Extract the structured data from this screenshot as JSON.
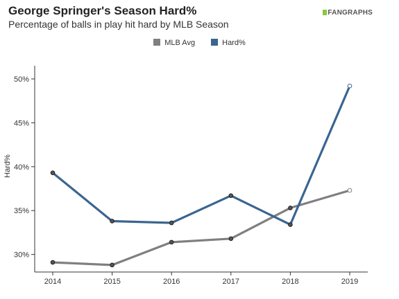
{
  "header": {
    "title": "George Springer's Season Hard%",
    "subtitle": "Percentage of balls in play hit hard by MLB Season",
    "logo_text": "FANGRAPHS"
  },
  "chart_data": {
    "type": "line",
    "title": "George Springer's Season Hard%",
    "subtitle": "Percentage of balls in play hit hard by MLB Season",
    "xlabel": "",
    "ylabel": "Hard%",
    "x": [
      2014,
      2015,
      2016,
      2017,
      2018,
      2019
    ],
    "xticks": [
      "2014",
      "2015",
      "2016",
      "2017",
      "2018",
      "2019"
    ],
    "yticks": [
      "30%",
      "35%",
      "40%",
      "45%",
      "50%"
    ],
    "ytick_values": [
      30,
      35,
      40,
      45,
      50
    ],
    "ylim": [
      28,
      51.5
    ],
    "legend": "top-center",
    "grid": false,
    "series": [
      {
        "name": "MLB Avg",
        "color": "#7f7f7f",
        "values": [
          29.1,
          28.8,
          31.4,
          31.8,
          35.3,
          37.3
        ]
      },
      {
        "name": "Hard%",
        "color": "#3a6590",
        "values": [
          39.3,
          33.8,
          33.6,
          36.7,
          33.4,
          49.2
        ]
      }
    ]
  }
}
